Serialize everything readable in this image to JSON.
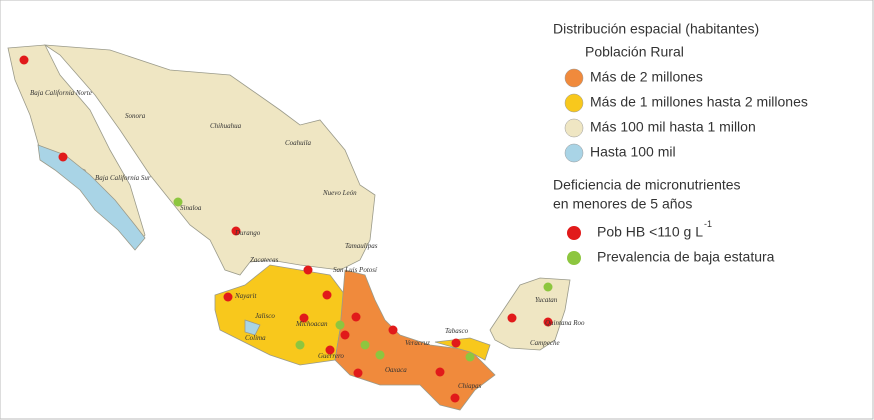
{
  "legend": {
    "title": "Distribución espacial (habitantes)",
    "subtitle": "Población Rural",
    "items": [
      {
        "label": "Más de 2 millones",
        "color": "#f08a3c"
      },
      {
        "label": "Más de 1 millones hasta 2 millones",
        "color": "#f8c81c"
      },
      {
        "label": "Más 100 mil hasta 1 millon",
        "color": "#efe6c3"
      },
      {
        "label": "Hasta 100 mil",
        "color": "#a9d4e6"
      }
    ],
    "micro_title": [
      "Deficiencia de micronutrientes",
      "en menores de 5 años"
    ],
    "micro_items": [
      {
        "label": "Pob HB <110  g L",
        "sup": "-1",
        "color": "#e11a1a"
      },
      {
        "label": "Prevalencia de baja estatura",
        "color": "#8dc63f"
      }
    ]
  },
  "states": [
    "Baja California Norte",
    "Sonora",
    "Chihuahua",
    "Coahuila",
    "Nuevo León",
    "Tamaulipas",
    "Baja California Sur",
    "Sinaloa",
    "Durango",
    "Zacatecas",
    "Nayarit",
    "San Luis Potosí",
    "Jalisco",
    "Michoacan",
    "Colima",
    "Guerrero",
    "Oaxaca",
    "Veracruz",
    "Chiapas",
    "Tabasco",
    "Campeche",
    "Yucatan",
    "Quintana Roo"
  ]
}
